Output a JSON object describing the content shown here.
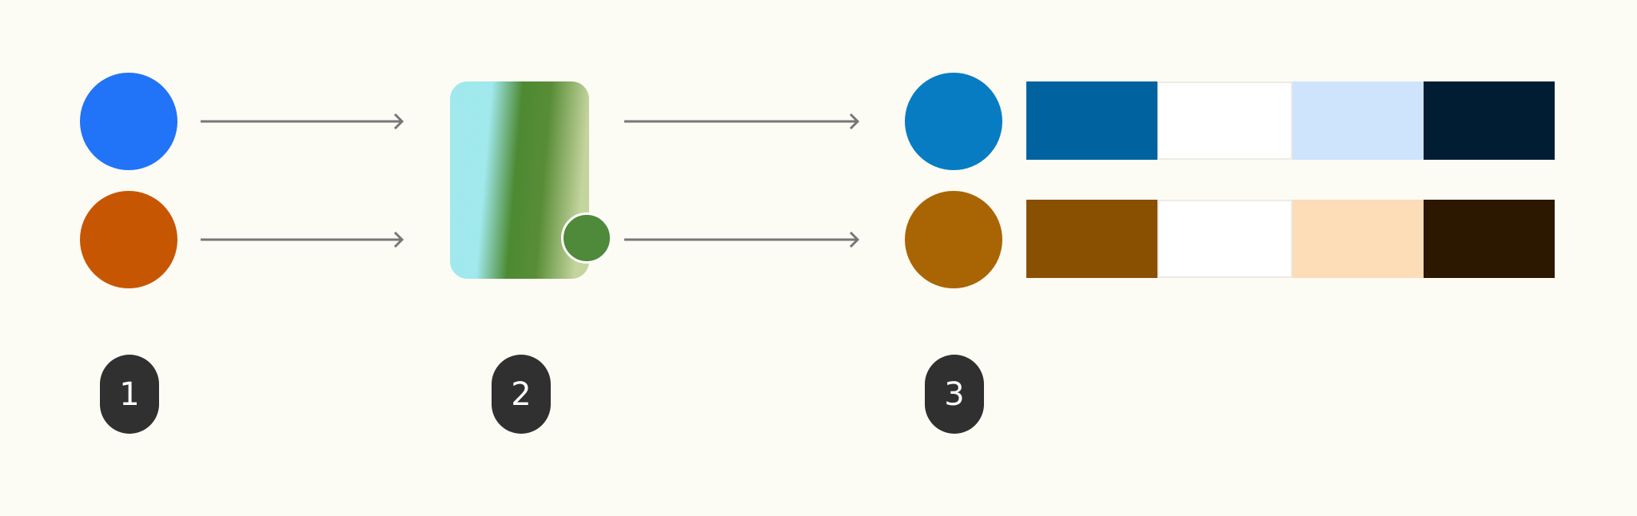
{
  "colors": {
    "background": "#fcfbf4",
    "step_badge": "#303030",
    "arrow": "#777777"
  },
  "sources": [
    {
      "color": "#2173f7"
    },
    {
      "color": "#c75602"
    }
  ],
  "wallpaper": {
    "gradient_colors": [
      "#a3ecf0",
      "#4e8c33",
      "#c7d7a0"
    ],
    "seed_color": "#4e8a39"
  },
  "outputs": [
    {
      "seed": "#077cc3",
      "palette": [
        "#00629f",
        "#ffffff",
        "#cee4fd",
        "#001d34"
      ]
    },
    {
      "seed": "#a96504",
      "palette": [
        "#8a5002",
        "#ffffff",
        "#fddcb8",
        "#2c1700"
      ]
    }
  ],
  "steps": [
    "1",
    "2",
    "3"
  ]
}
